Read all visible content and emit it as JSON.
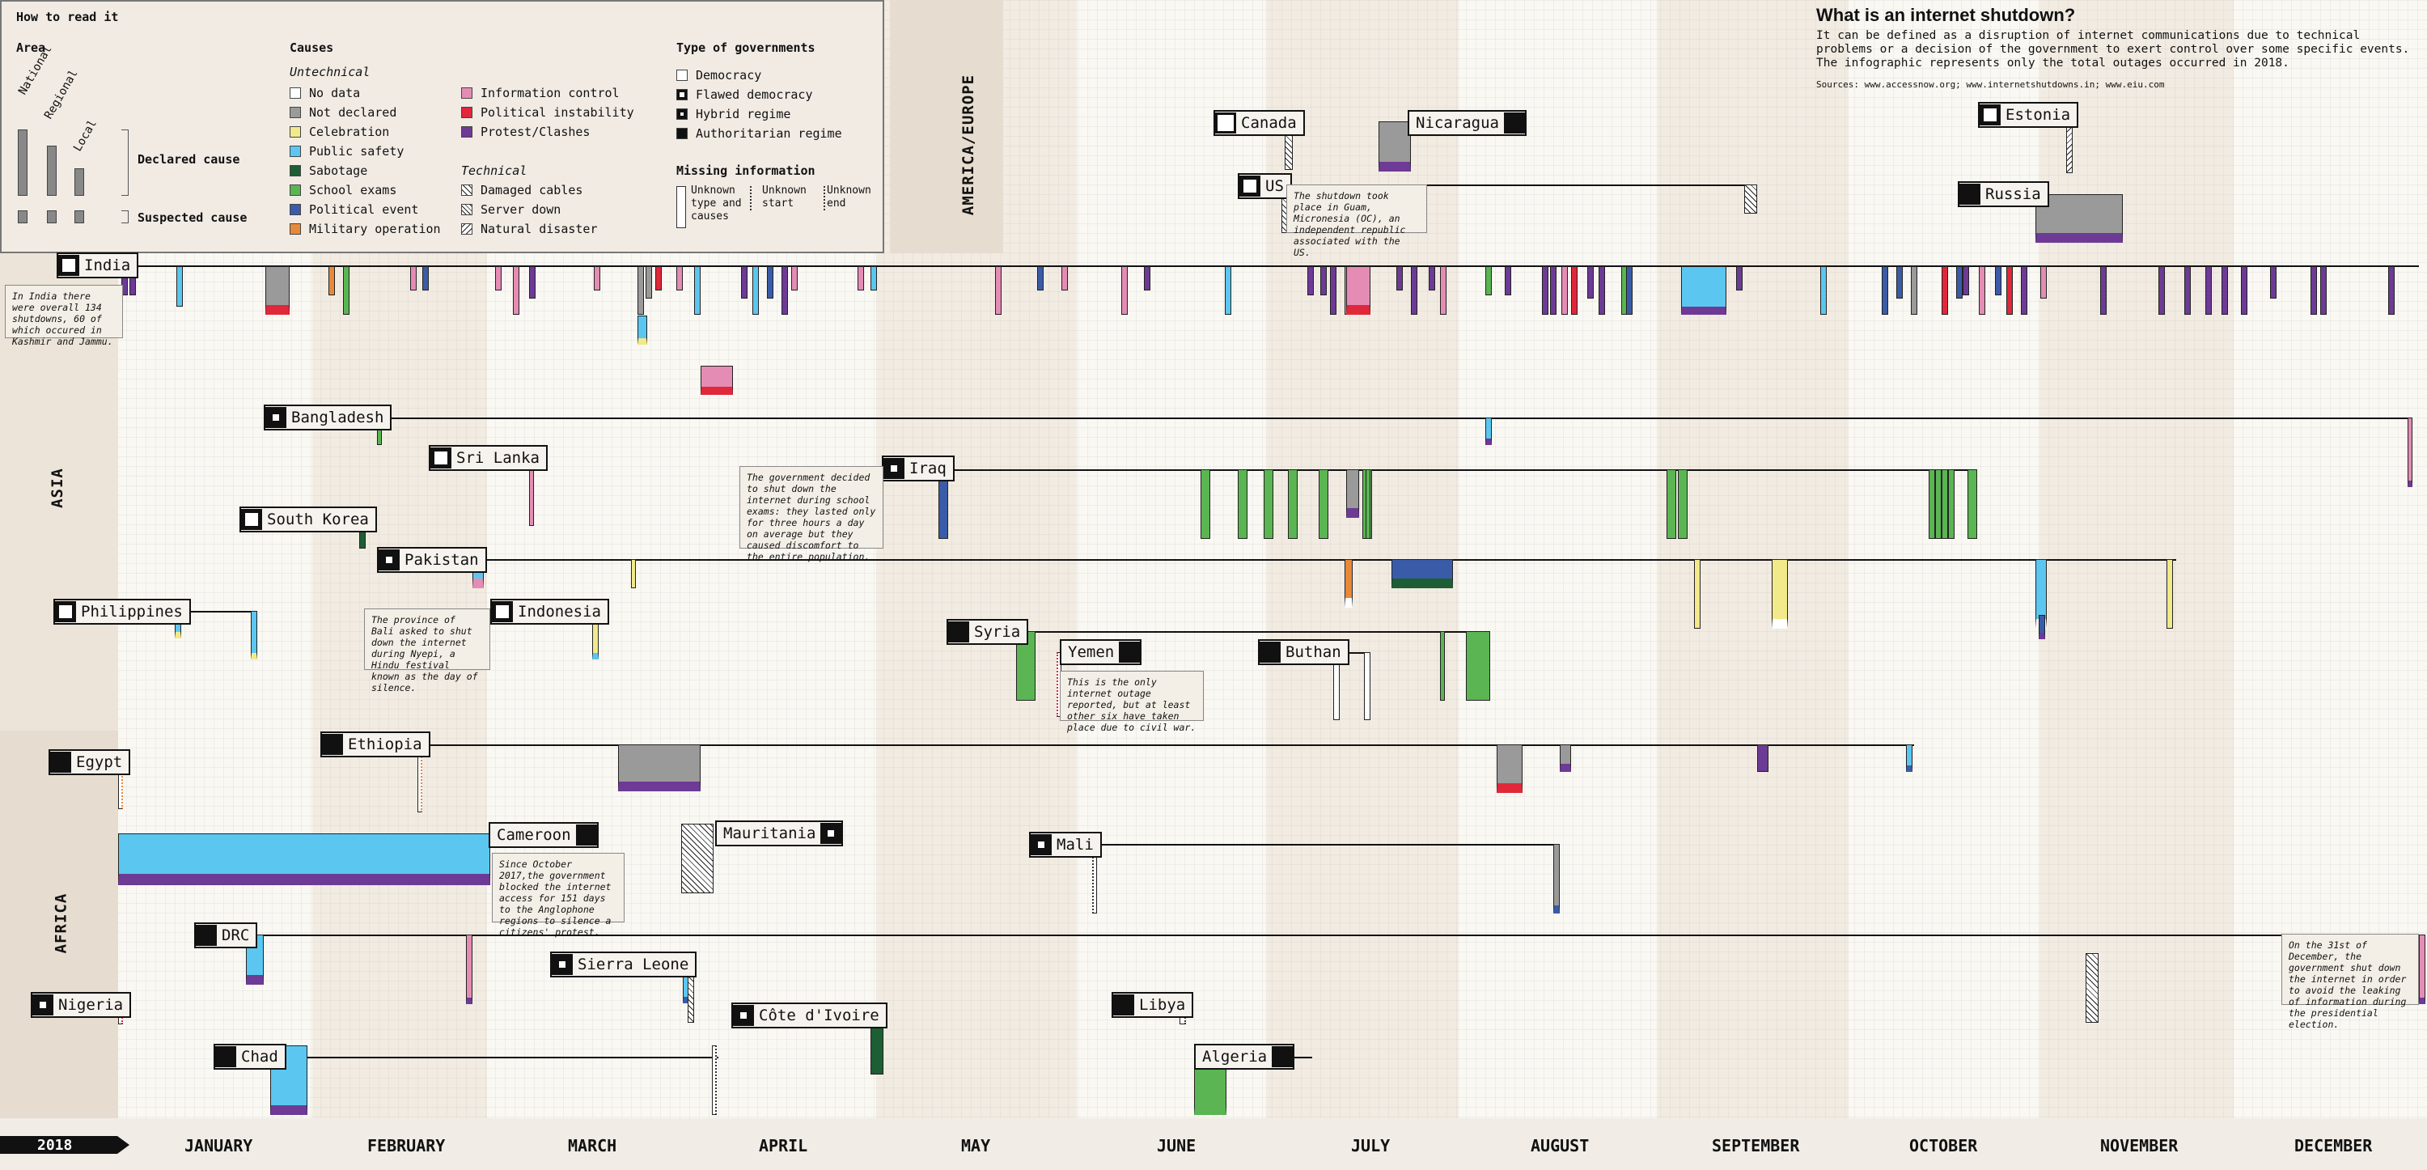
{
  "year_label": "2018",
  "months": [
    "JANUARY",
    "FEBRUARY",
    "MARCH",
    "APRIL",
    "MAY",
    "JUNE",
    "JULY",
    "AUGUST",
    "SEPTEMBER",
    "OCTOBER",
    "NOVEMBER",
    "DECEMBER"
  ],
  "regions": [
    "AMERICA/EUROPE",
    "ASIA",
    "AFRICA"
  ],
  "header": {
    "title": "What is an internet shutdown?",
    "description": "It can be defined as a disruption of internet communications due to technical problems or a decision of the government to exert control over some specific events. The infographic represents only the total outages occurred in 2018.",
    "sources": "Sources: www.accessnow.org; www.internetshutdowns.in; www.eiu.com"
  },
  "legend": {
    "title": "How to read it",
    "area_title": "Area",
    "area_levels": [
      "National",
      "Regional",
      "Local"
    ],
    "declared_cause": "Declared cause",
    "suspected_cause": "Suspected cause",
    "causes_title": "Causes",
    "untechnical_title": "Untechnical",
    "technical_title": "Technical",
    "causes_col1": [
      {
        "label": "No data",
        "color": "#ffffff"
      },
      {
        "label": "Not declared",
        "color": "#9a9a9a"
      },
      {
        "label": "Celebration",
        "color": "#f2e98a"
      },
      {
        "label": "Public safety",
        "color": "#5bc7f0"
      },
      {
        "label": "Sabotage",
        "color": "#1e5e34"
      },
      {
        "label": "School exams",
        "color": "#5ab552"
      },
      {
        "label": "Political event",
        "color": "#3a5ca8"
      },
      {
        "label": "Military operation",
        "color": "#e8893a"
      }
    ],
    "causes_col2": [
      {
        "label": "Information control",
        "color": "#e58cb4"
      },
      {
        "label": "Political instability",
        "color": "#e0283a"
      },
      {
        "label": "Protest/Clashes",
        "color": "#6d3a96"
      }
    ],
    "technical": [
      {
        "label": "Damaged cables",
        "pattern": "hatch"
      },
      {
        "label": "Server down",
        "pattern": "cross"
      },
      {
        "label": "Natural disaster",
        "pattern": "hatch-back"
      }
    ],
    "gov_title": "Type of governments",
    "governments": [
      {
        "label": "Democracy",
        "type": "democracy"
      },
      {
        "label": "Flawed democracy",
        "type": "flawed"
      },
      {
        "label": "Hybrid regime",
        "type": "hybrid"
      },
      {
        "label": "Authoritarian regime",
        "type": "auth"
      }
    ],
    "missing_title": "Missing information",
    "missing": [
      "Unknown type and causes",
      "Unknown start",
      "Unknown end"
    ]
  },
  "countries": [
    {
      "name": "Canada",
      "gov": "democracy"
    },
    {
      "name": "Nicaragua",
      "gov": "auth"
    },
    {
      "name": "Estonia",
      "gov": "flawed"
    },
    {
      "name": "US",
      "gov": "flawed"
    },
    {
      "name": "Russia",
      "gov": "auth"
    },
    {
      "name": "India",
      "gov": "flawed"
    },
    {
      "name": "Bangladesh",
      "gov": "hybrid"
    },
    {
      "name": "Sri Lanka",
      "gov": "flawed"
    },
    {
      "name": "Iraq",
      "gov": "hybrid"
    },
    {
      "name": "South Korea",
      "gov": "flawed"
    },
    {
      "name": "Pakistan",
      "gov": "hybrid"
    },
    {
      "name": "Philippines",
      "gov": "flawed"
    },
    {
      "name": "Indonesia",
      "gov": "flawed"
    },
    {
      "name": "Syria",
      "gov": "auth"
    },
    {
      "name": "Yemen",
      "gov": "auth"
    },
    {
      "name": "Buthan",
      "gov": "auth"
    },
    {
      "name": "Ethiopia",
      "gov": "auth"
    },
    {
      "name": "Egypt",
      "gov": "auth"
    },
    {
      "name": "Cameroon",
      "gov": "auth"
    },
    {
      "name": "Mauritania",
      "gov": "hybrid"
    },
    {
      "name": "Mali",
      "gov": "hybrid"
    },
    {
      "name": "DRC",
      "gov": "auth"
    },
    {
      "name": "Sierra Leone",
      "gov": "hybrid"
    },
    {
      "name": "Nigeria",
      "gov": "hybrid"
    },
    {
      "name": "Libya",
      "gov": "auth"
    },
    {
      "name": "Côte d'Ivoire",
      "gov": "hybrid"
    },
    {
      "name": "Chad",
      "gov": "auth"
    },
    {
      "name": "Algeria",
      "gov": "auth"
    }
  ],
  "notes": {
    "india": "In India there were overall 134 shutdowns, 60 of which occured in Kashmir and Jammu.",
    "us": "The shutdown took place in Guam, Micronesia (OC), an independent republic associated with the US.",
    "iraq": "The government decided to shut down the internet during school exams: they lasted only for three hours a day on average but they caused discomfort to the entire population.",
    "indonesia": "The province of Bali asked to shut down the internet during Nyepi, a Hindu festival known as the day of silence.",
    "yemen": "This is the only internet outage reported, but at least other six have taken place due to civil war.",
    "cameroon": "Since October 2017,the government blocked the internet access for 151 days to the Anglophone regions to silence a citizens' protest.",
    "nigeria_dec": "On the 31st of December, the government shut down the internet in order to avoid the leaking of information during the presidential election."
  },
  "chart_data": {
    "type": "timeline",
    "x_axis": "2018 (Jan–Dec)",
    "color_key": {
      "no_data": "#ffffff",
      "not_declared": "#9a9a9a",
      "celebration": "#f2e98a",
      "public_safety": "#5bc7f0",
      "sabotage": "#1e5e34",
      "school_exams": "#5ab552",
      "political_event": "#3a5ca8",
      "military_operation": "#e8893a",
      "information_control": "#e58cb4",
      "political_instability": "#e0283a",
      "protest": "#6d3a96"
    },
    "rows": {
      "Canada": [
        {
          "start": "2018-06-15",
          "end": "2018-06-17",
          "cause": "natural_disaster",
          "area": "local"
        }
      ],
      "Nicaragua": [
        {
          "start": "2018-07-01",
          "end": "2018-07-05",
          "cause": "not_declared",
          "area": "national",
          "second": "protest"
        }
      ],
      "Estonia": [
        {
          "start": "2018-10-20",
          "end": "2018-10-20",
          "cause": "server_down",
          "area": "local"
        }
      ],
      "US": [
        {
          "start": "2018-07-09",
          "end": "2018-09-05",
          "cause": "damaged_cables",
          "area": "local"
        }
      ],
      "Russia": [
        {
          "start": "2018-10-10",
          "end": "2018-10-31",
          "cause": "not_declared",
          "area": "regional",
          "second": "protest"
        }
      ],
      "India": [
        {
          "start": "2018-01-03",
          "end": "2018-12-31",
          "cause": "multiple",
          "count": 134
        }
      ],
      "Bangladesh": [
        {
          "start": "2018-02-13",
          "end": "2018-02-14",
          "cause": "school_exams"
        },
        {
          "start": "2018-08-05",
          "end": "2018-08-06",
          "cause": "public_safety"
        }
      ],
      "Sri Lanka": [
        {
          "start": "2018-03-07",
          "end": "2018-03-15",
          "cause": "information_control"
        }
      ],
      "Iraq": [
        {
          "start": "2018-05-10",
          "end": "2018-07-30",
          "cause": "school_exams"
        }
      ],
      "South Korea": [
        {
          "start": "2018-02-11",
          "end": "2018-02-12",
          "cause": "sabotage"
        }
      ],
      "Pakistan": [
        {
          "start": "2018-02-18",
          "end": "2018-02-20",
          "cause": "public_safety"
        },
        {
          "start": "2018-07-25",
          "end": "2018-08-05",
          "cause": "political_event"
        }
      ],
      "Philippines": [
        {
          "start": "2018-01-08",
          "end": "2018-01-09",
          "cause": "public_safety"
        },
        {
          "start": "2018-01-22",
          "end": "2018-01-23",
          "cause": "public_safety"
        }
      ],
      "Indonesia": [
        {
          "start": "2018-03-17",
          "end": "2018-03-18",
          "cause": "celebration"
        }
      ],
      "Syria": [
        {
          "start": "2018-05-20",
          "end": "2018-06-12",
          "cause": "school_exams"
        }
      ],
      "Yemen": [
        {
          "start": "2018-05-31",
          "end": "2018-06-01",
          "cause": "no_data"
        }
      ],
      "Buthan": [
        {
          "start": "2018-07-01",
          "end": "2018-07-05",
          "cause": "no_data"
        }
      ],
      "Ethiopia": [
        {
          "start": "2018-02-05",
          "end": "2018-02-10",
          "cause": "no_data"
        },
        {
          "start": "2018-03-20",
          "end": "2018-04-02",
          "cause": "not_declared",
          "second": "protest"
        }
      ],
      "Egypt": [
        {
          "start": "2018-01-01",
          "end": "2018-01-02",
          "cause": "no_data"
        }
      ],
      "Cameroon": [
        {
          "start": "2018-01-01",
          "end": "2018-03-02",
          "cause": "public_safety",
          "second": "protest"
        }
      ],
      "Mauritania": [
        {
          "start": "2018-04-08",
          "end": "2018-04-15",
          "cause": "damaged_cables"
        }
      ],
      "Mali": [
        {
          "start": "2018-05-25",
          "end": "2018-08-04",
          "cause": "not_declared"
        }
      ],
      "DRC": [
        {
          "start": "2018-01-20",
          "end": "2018-01-23",
          "cause": "public_safety",
          "second": "protest"
        }
      ],
      "Sierra Leone": [
        {
          "start": "2018-03-30",
          "end": "2018-11-25",
          "cause": "damaged_cables"
        }
      ],
      "Nigeria": [
        {
          "start": "2018-01-01",
          "end": "2018-01-01",
          "cause": "no_data"
        },
        {
          "start": "2018-12-31",
          "end": "2018-12-31",
          "cause": "information_control"
        }
      ],
      "Libya": [
        {
          "start": "2018-06-02",
          "end": "2018-06-03",
          "cause": "no_data"
        }
      ],
      "Côte d'Ivoire": [
        {
          "start": "2018-04-20",
          "end": "2018-04-25",
          "cause": "sabotage"
        }
      ],
      "Chad": [
        {
          "start": "2018-01-28",
          "end": "2018-03-27",
          "cause": "public_safety",
          "second": "protest"
        }
      ],
      "Algeria": [
        {
          "start": "2018-06-19",
          "end": "2018-06-25",
          "cause": "school_exams"
        }
      ]
    }
  }
}
